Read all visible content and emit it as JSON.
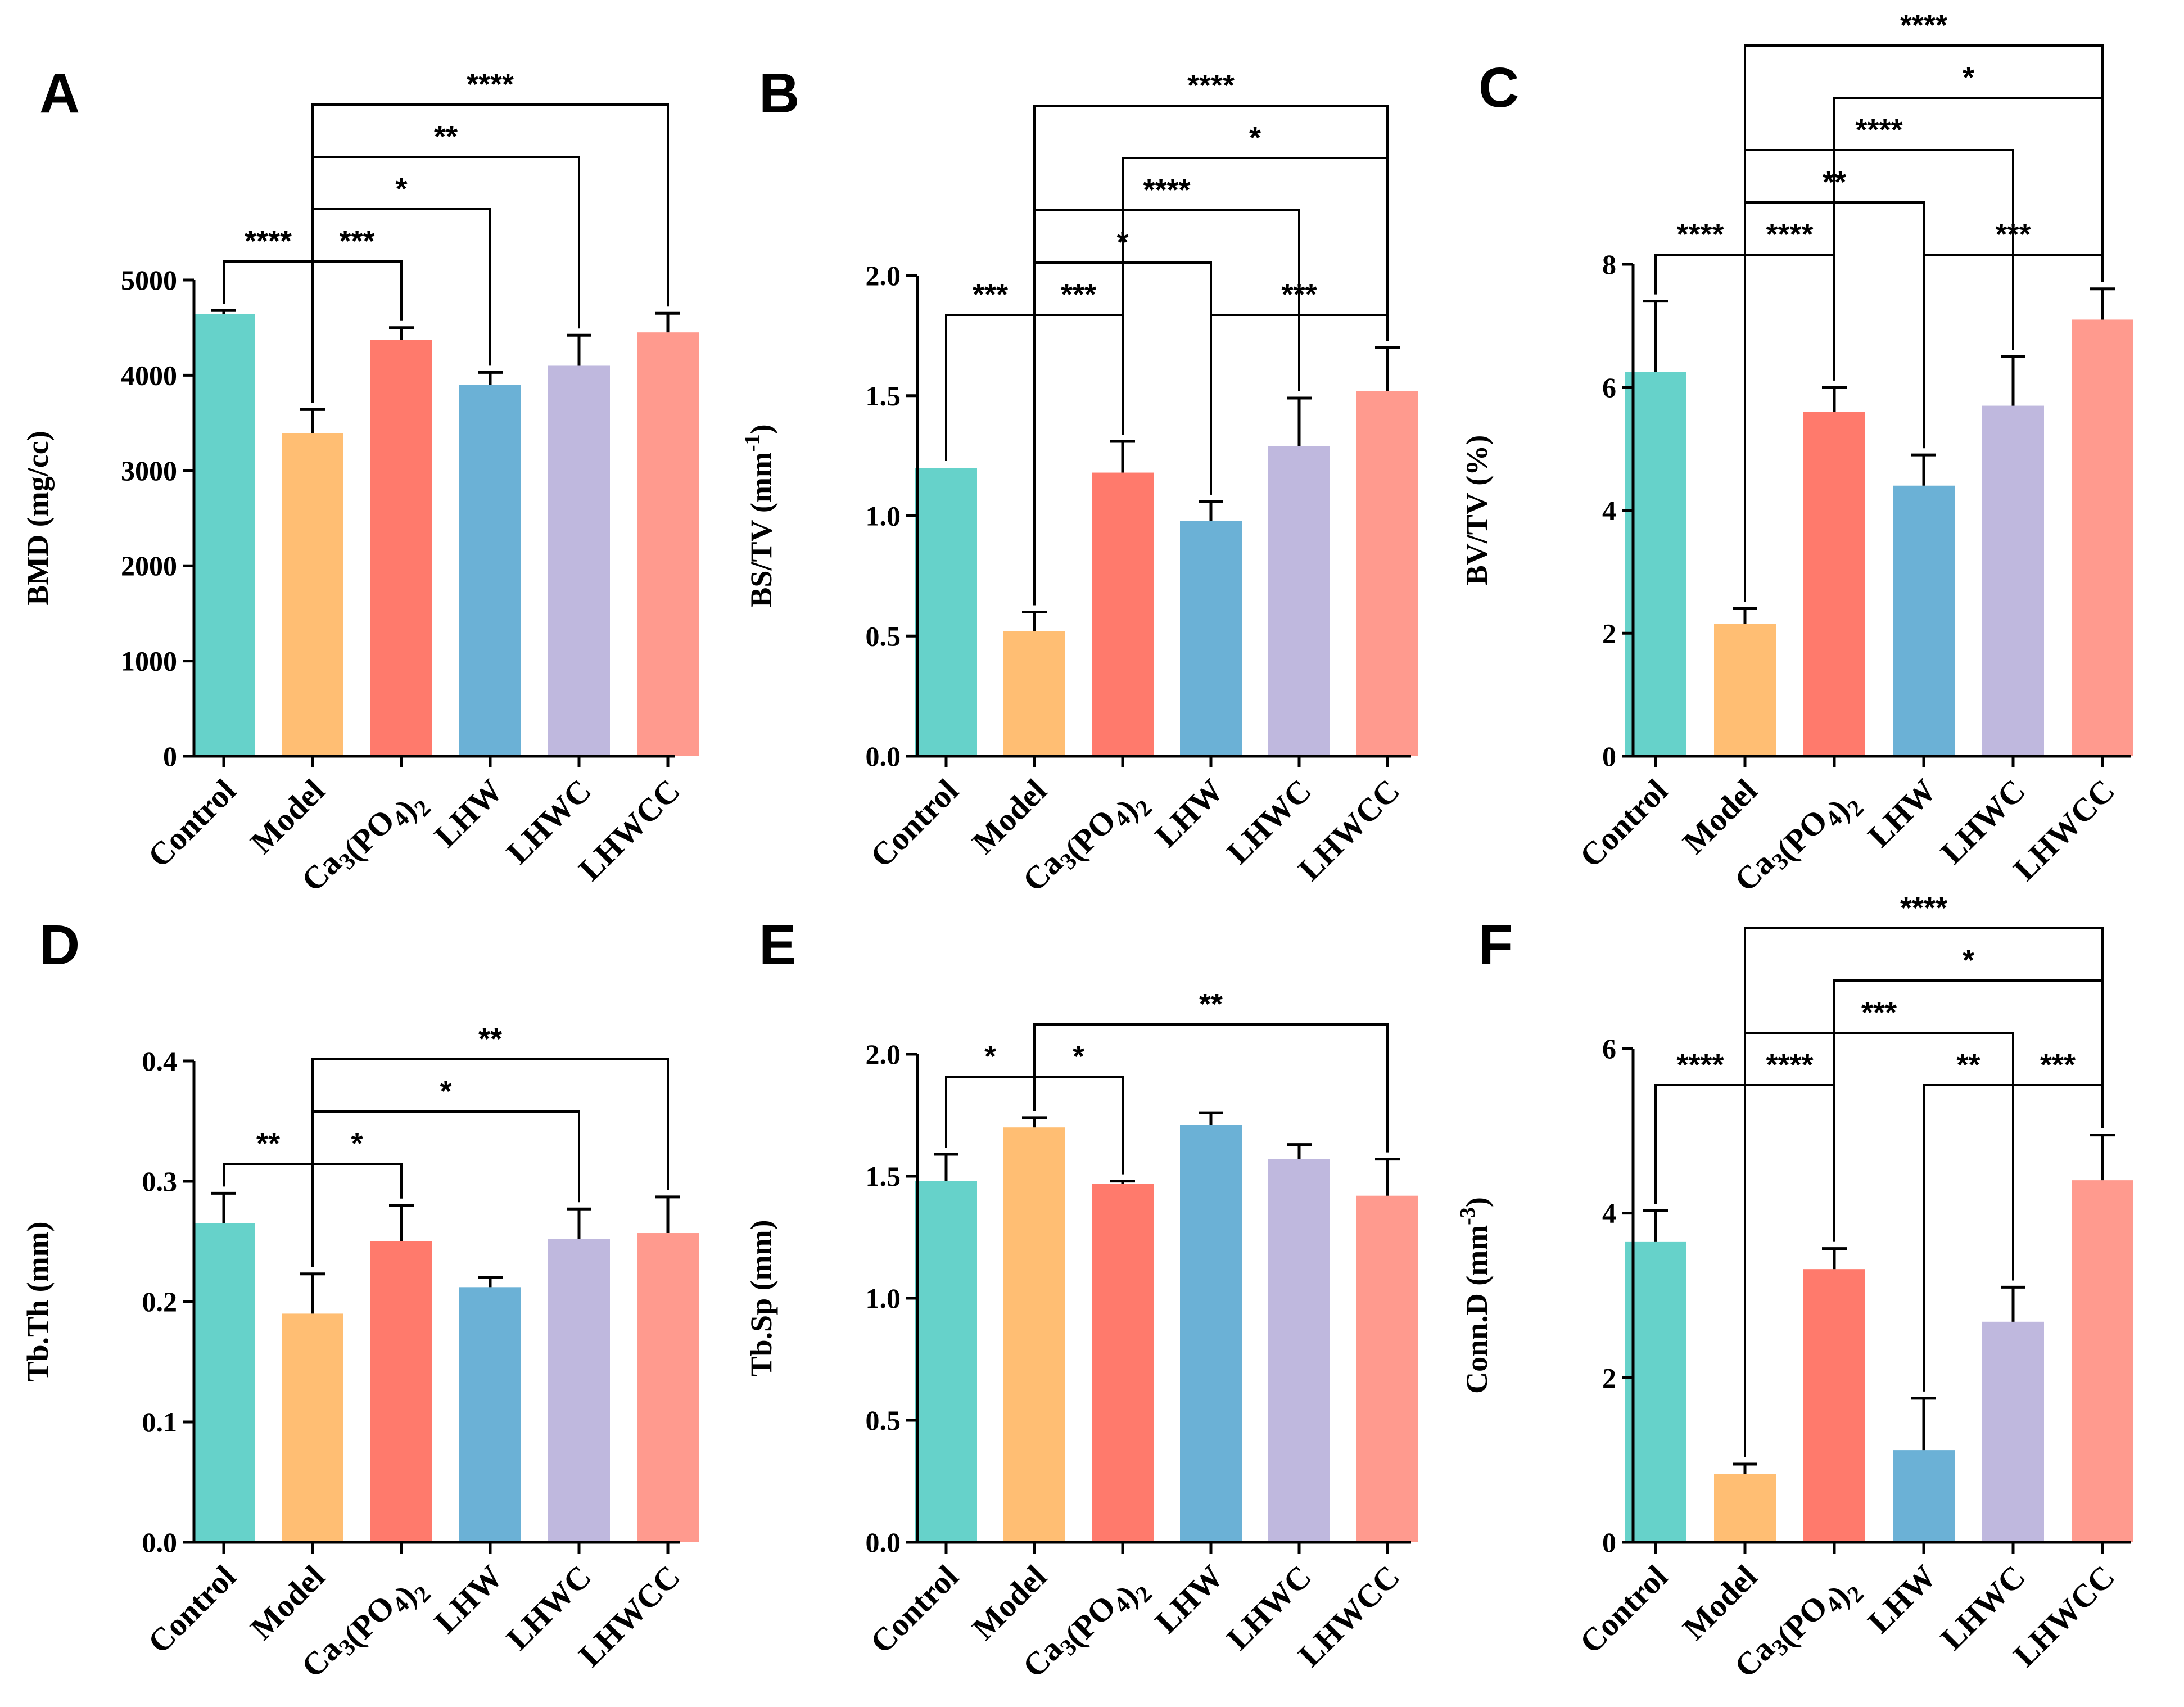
{
  "palette": {
    "Control": "#66D2CA",
    "Model": "#FFBE73",
    "Ca3(PO4)2": "#FF7A6C",
    "LHW": "#6BB1D6",
    "LHWC": "#BFB8DE",
    "LHWCC": "#FF9A8E"
  },
  "chart_data": [
    {
      "id": "A",
      "panel_label": "A",
      "type": "bar",
      "categories": [
        "Control",
        "Model",
        "Ca3(PO4)2",
        "LHW",
        "LHWC",
        "LHWCC"
      ],
      "values": [
        4640,
        3390,
        4370,
        3900,
        4100,
        4450
      ],
      "errors": [
        40,
        250,
        130,
        130,
        320,
        200
      ],
      "ylabel": "BMD (mg/cc)",
      "ylim": [
        0,
        5000
      ],
      "yticks": [
        0,
        1000,
        2000,
        3000,
        4000,
        5000
      ],
      "significance": [
        {
          "from": "Control",
          "to": "Model",
          "label": "****",
          "level": 1
        },
        {
          "from": "Model",
          "to": "Ca3(PO4)2",
          "label": "***",
          "level": 1
        },
        {
          "from": "Model",
          "to": "LHW",
          "label": "*",
          "level": 2
        },
        {
          "from": "Model",
          "to": "LHWC",
          "label": "**",
          "level": 3
        },
        {
          "from": "Model",
          "to": "LHWCC",
          "label": "****",
          "level": 4
        }
      ]
    },
    {
      "id": "B",
      "panel_label": "B",
      "type": "bar",
      "categories": [
        "Control",
        "Model",
        "Ca3(PO4)2",
        "LHW",
        "LHWC",
        "LHWCC"
      ],
      "values": [
        1.2,
        0.52,
        1.18,
        0.98,
        1.29,
        1.52
      ],
      "errors": [
        0,
        0.08,
        0.13,
        0.08,
        0.2,
        0.18
      ],
      "ylabel": "BS/TV (mm-1)",
      "ylim": [
        0,
        2.0
      ],
      "yticks": [
        "0.0",
        "0.5",
        "1.0",
        "1.5",
        "2.0"
      ],
      "significance": [
        {
          "from": "Control",
          "to": "Model",
          "label": "***",
          "level": 1
        },
        {
          "from": "Model",
          "to": "Ca3(PO4)2",
          "label": "***",
          "level": 1
        },
        {
          "from": "LHW",
          "to": "LHWCC",
          "label": "***",
          "level": 1
        },
        {
          "from": "Model",
          "to": "LHW",
          "label": "*",
          "level": 2
        },
        {
          "from": "Model",
          "to": "LHWC",
          "label": "****",
          "level": 3
        },
        {
          "from": "Ca3(PO4)2",
          "to": "LHWCC",
          "label": "*",
          "level": 4
        },
        {
          "from": "Model",
          "to": "LHWCC",
          "label": "****",
          "level": 5
        }
      ]
    },
    {
      "id": "C",
      "panel_label": "C",
      "type": "bar",
      "categories": [
        "Control",
        "Model",
        "Ca3(PO4)2",
        "LHW",
        "LHWC",
        "LHWCC"
      ],
      "values": [
        6.25,
        2.15,
        5.6,
        4.4,
        5.7,
        7.1
      ],
      "errors": [
        1.15,
        0.25,
        0.4,
        0.5,
        0.8,
        0.5
      ],
      "ylabel": "BV/TV (%)",
      "ylim": [
        0,
        8
      ],
      "yticks": [
        0,
        2,
        4,
        6,
        8
      ],
      "significance": [
        {
          "from": "Control",
          "to": "Model",
          "label": "****",
          "level": 1
        },
        {
          "from": "Model",
          "to": "Ca3(PO4)2",
          "label": "****",
          "level": 1
        },
        {
          "from": "LHW",
          "to": "LHWCC",
          "label": "***",
          "level": 1
        },
        {
          "from": "Model",
          "to": "LHW",
          "label": "**",
          "level": 2
        },
        {
          "from": "Model",
          "to": "LHWC",
          "label": "****",
          "level": 3
        },
        {
          "from": "Ca3(PO4)2",
          "to": "LHWCC",
          "label": "*",
          "level": 4
        },
        {
          "from": "Model",
          "to": "LHWCC",
          "label": "****",
          "level": 5
        }
      ]
    },
    {
      "id": "D",
      "panel_label": "D",
      "type": "bar",
      "categories": [
        "Control",
        "Model",
        "Ca3(PO4)2",
        "LHW",
        "LHWC",
        "LHWCC"
      ],
      "values": [
        0.265,
        0.19,
        0.25,
        0.212,
        0.252,
        0.257
      ],
      "errors": [
        0.025,
        0.033,
        0.03,
        0.008,
        0.025,
        0.03
      ],
      "ylabel": "Tb.Th (mm)",
      "ylim": [
        0,
        0.4
      ],
      "yticks": [
        "0.0",
        "0.1",
        "0.2",
        "0.3",
        "0.4"
      ],
      "significance": [
        {
          "from": "Control",
          "to": "Model",
          "label": "**",
          "level": 1
        },
        {
          "from": "Model",
          "to": "Ca3(PO4)2",
          "label": "*",
          "level": 1
        },
        {
          "from": "Model",
          "to": "LHWC",
          "label": "*",
          "level": 2
        },
        {
          "from": "Model",
          "to": "LHWCC",
          "label": "**",
          "level": 3
        }
      ]
    },
    {
      "id": "E",
      "panel_label": "E",
      "type": "bar",
      "categories": [
        "Control",
        "Model",
        "Ca3(PO4)2",
        "LHW",
        "LHWC",
        "LHWCC"
      ],
      "values": [
        1.48,
        1.7,
        1.47,
        1.71,
        1.57,
        1.42
      ],
      "errors": [
        0.11,
        0.04,
        0.01,
        0.05,
        0.06,
        0.15
      ],
      "ylabel": "Tb.Sp (mm)",
      "ylim": [
        0,
        2.0
      ],
      "yticks": [
        "0.0",
        "0.5",
        "1.0",
        "1.5",
        "2.0"
      ],
      "significance": [
        {
          "from": "Control",
          "to": "Model",
          "label": "*",
          "level": 1
        },
        {
          "from": "Model",
          "to": "Ca3(PO4)2",
          "label": "*",
          "level": 1
        },
        {
          "from": "Model",
          "to": "LHWCC",
          "label": "**",
          "level": 2
        }
      ]
    },
    {
      "id": "F",
      "panel_label": "F",
      "type": "bar",
      "categories": [
        "Control",
        "Model",
        "Ca3(PO4)2",
        "LHW",
        "LHWC",
        "LHWCC"
      ],
      "values": [
        3.65,
        0.83,
        3.32,
        1.12,
        2.68,
        4.4
      ],
      "errors": [
        0.38,
        0.12,
        0.25,
        0.63,
        0.42,
        0.55
      ],
      "ylabel": "Conn.D (mm-3)",
      "ylim": [
        0,
        6
      ],
      "yticks": [
        0,
        2,
        4,
        6
      ],
      "significance": [
        {
          "from": "Control",
          "to": "Model",
          "label": "****",
          "level": 1
        },
        {
          "from": "Model",
          "to": "Ca3(PO4)2",
          "label": "****",
          "level": 1
        },
        {
          "from": "LHW",
          "to": "LHWC",
          "label": "**",
          "level": 1
        },
        {
          "from": "LHWC",
          "to": "LHWCC",
          "label": "***",
          "level": 1
        },
        {
          "from": "Model",
          "to": "LHWC",
          "label": "***",
          "level": 2
        },
        {
          "from": "Ca3(PO4)2",
          "to": "LHWCC",
          "label": "*",
          "level": 3
        },
        {
          "from": "Model",
          "to": "LHWCC",
          "label": "****",
          "level": 4
        }
      ]
    }
  ]
}
